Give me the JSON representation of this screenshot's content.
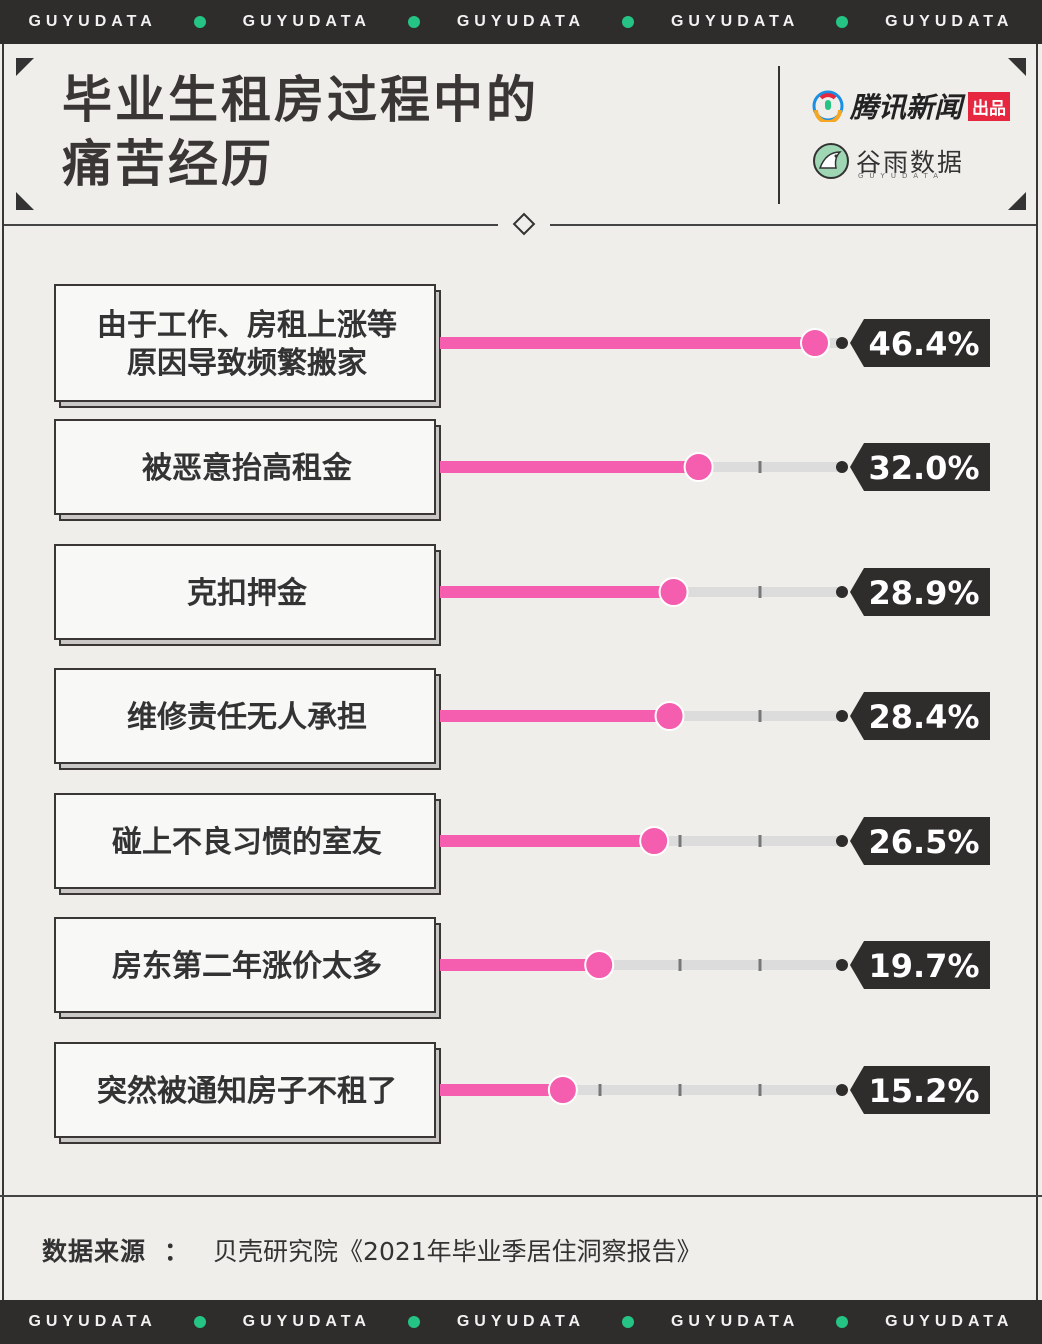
{
  "header": {
    "brand_strip": [
      "GUYUDATA",
      "GUYUDATA",
      "GUYUDATA",
      "GUYUDATA",
      "GUYUDATA"
    ],
    "title_lines": [
      "毕业生租房过程中的",
      "痛苦经历"
    ],
    "logo_primary": "腾讯新闻",
    "logo_primary_badge": "出品",
    "logo_secondary": "谷雨数据",
    "logo_secondary_sub": "GUYUDATA"
  },
  "colors": {
    "accent_pink": "#f55dae",
    "track_grey": "#dcdcdc",
    "dark": "#2f2c2c",
    "brand_green": "#25c485"
  },
  "chart_data": {
    "type": "bar",
    "orientation": "horizontal",
    "categories": [
      "由于工作、房租上涨等原因导致频繁搬家",
      "被恶意抬高租金",
      "克扣押金",
      "维修责任无人承担",
      "碰上不良习惯的室友",
      "房东第二年涨价太多",
      "突然被通知房子不租了"
    ],
    "values": [
      46.4,
      32.0,
      28.9,
      28.4,
      26.5,
      19.7,
      15.2
    ],
    "value_labels": [
      "46.4%",
      "32.0%",
      "28.9%",
      "28.4%",
      "26.5%",
      "19.7%",
      "15.2%"
    ],
    "unit": "%",
    "xlim": [
      0,
      50
    ],
    "title": "毕业生租房过程中的痛苦经历"
  },
  "footer": {
    "source_label": "数据来源",
    "source_sep": "：",
    "source_text": "贝壳研究院《2021年毕业季居住洞察报告》"
  }
}
